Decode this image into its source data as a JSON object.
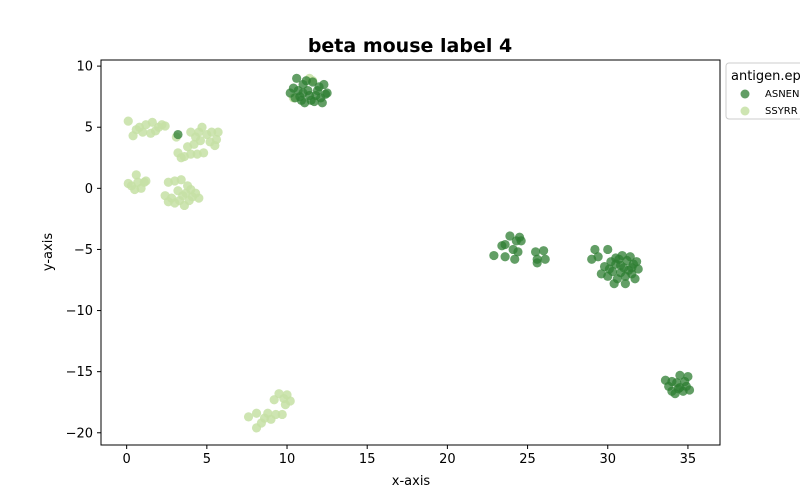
{
  "chart_data": {
    "type": "scatter",
    "title": "beta mouse label 4",
    "xlabel": "x-axis",
    "ylabel": "y-axis",
    "xlim": [
      -1.6,
      37.0
    ],
    "ylim": [
      -21.0,
      10.5
    ],
    "xticks": [
      0,
      5,
      10,
      15,
      20,
      25,
      30,
      35
    ],
    "yticks": [
      10,
      5,
      0,
      -5,
      -10,
      -15,
      -20
    ],
    "xtick_labels": [
      "0",
      "5",
      "10",
      "15",
      "20",
      "25",
      "30",
      "35"
    ],
    "ytick_labels": [
      "10",
      "5",
      "0",
      "−5",
      "−10",
      "−15",
      "−20"
    ],
    "grid": false,
    "legend": {
      "title": "antigen.ep",
      "placement": "outside-top-right",
      "entries": [
        "ASNEN",
        "SSYRR"
      ]
    },
    "series": [
      {
        "name": "ASNEN",
        "color": "#2e7d32",
        "points": [
          [
            3.2,
            4.4
          ],
          [
            10.2,
            7.8
          ],
          [
            10.4,
            8.2
          ],
          [
            10.6,
            9.0
          ],
          [
            10.8,
            7.5
          ],
          [
            11.0,
            8.5
          ],
          [
            11.1,
            7.0
          ],
          [
            11.3,
            8.0
          ],
          [
            11.5,
            7.2
          ],
          [
            11.6,
            8.7
          ],
          [
            11.8,
            7.6
          ],
          [
            12.0,
            8.3
          ],
          [
            12.2,
            7.0
          ],
          [
            12.3,
            8.5
          ],
          [
            12.5,
            7.8
          ],
          [
            10.9,
            7.2
          ],
          [
            11.4,
            7.6
          ],
          [
            11.9,
            8.0
          ],
          [
            12.1,
            7.4
          ],
          [
            10.5,
            7.4
          ],
          [
            11.2,
            8.8
          ],
          [
            11.7,
            7.1
          ],
          [
            12.4,
            7.7
          ],
          [
            10.7,
            8.0
          ],
          [
            11.0,
            7.8
          ],
          [
            22.9,
            -5.5
          ],
          [
            23.4,
            -4.7
          ],
          [
            23.6,
            -4.6
          ],
          [
            23.6,
            -5.6
          ],
          [
            23.9,
            -3.9
          ],
          [
            24.1,
            -5.0
          ],
          [
            24.2,
            -5.8
          ],
          [
            24.3,
            -4.3
          ],
          [
            24.4,
            -5.2
          ],
          [
            24.5,
            -4.0
          ],
          [
            24.6,
            -4.3
          ],
          [
            25.5,
            -5.2
          ],
          [
            25.6,
            -5.8
          ],
          [
            25.6,
            -6.1
          ],
          [
            26.0,
            -5.1
          ],
          [
            26.1,
            -5.8
          ],
          [
            29.0,
            -5.8
          ],
          [
            29.2,
            -5.0
          ],
          [
            29.4,
            -5.6
          ],
          [
            29.6,
            -7.0
          ],
          [
            29.8,
            -6.4
          ],
          [
            30.0,
            -5.0
          ],
          [
            30.0,
            -7.2
          ],
          [
            30.2,
            -6.0
          ],
          [
            30.3,
            -6.8
          ],
          [
            30.4,
            -7.8
          ],
          [
            30.5,
            -6.2
          ],
          [
            30.6,
            -7.4
          ],
          [
            30.7,
            -5.8
          ],
          [
            30.8,
            -6.9
          ],
          [
            30.9,
            -5.5
          ],
          [
            31.0,
            -6.5
          ],
          [
            31.1,
            -7.2
          ],
          [
            31.2,
            -5.9
          ],
          [
            31.3,
            -6.7
          ],
          [
            31.4,
            -5.6
          ],
          [
            31.5,
            -7.0
          ],
          [
            31.6,
            -6.2
          ],
          [
            31.7,
            -7.4
          ],
          [
            31.8,
            -6.0
          ],
          [
            31.9,
            -6.6
          ],
          [
            30.1,
            -6.6
          ],
          [
            30.5,
            -5.7
          ],
          [
            31.1,
            -7.8
          ],
          [
            30.8,
            -6.3
          ],
          [
            31.5,
            -6.5
          ],
          [
            33.6,
            -15.7
          ],
          [
            33.8,
            -16.2
          ],
          [
            34.0,
            -15.8
          ],
          [
            34.0,
            -16.6
          ],
          [
            34.2,
            -16.8
          ],
          [
            34.3,
            -15.9
          ],
          [
            34.5,
            -16.3
          ],
          [
            34.5,
            -15.3
          ],
          [
            34.7,
            -16.6
          ],
          [
            34.8,
            -15.8
          ],
          [
            34.9,
            -16.2
          ],
          [
            35.0,
            -15.4
          ],
          [
            35.1,
            -16.5
          ],
          [
            34.4,
            -16.4
          ]
        ]
      },
      {
        "name": "SSYRR",
        "color": "#c5e0a5",
        "points": [
          [
            0.1,
            5.5
          ],
          [
            0.4,
            4.3
          ],
          [
            0.6,
            4.8
          ],
          [
            0.8,
            5.0
          ],
          [
            1.0,
            4.6
          ],
          [
            1.2,
            5.2
          ],
          [
            1.5,
            4.5
          ],
          [
            1.6,
            5.4
          ],
          [
            1.8,
            4.7
          ],
          [
            2.0,
            5.0
          ],
          [
            2.2,
            5.2
          ],
          [
            2.4,
            5.1
          ],
          [
            3.1,
            4.2
          ],
          [
            3.2,
            2.9
          ],
          [
            3.4,
            2.5
          ],
          [
            3.6,
            2.6
          ],
          [
            3.8,
            3.4
          ],
          [
            4.0,
            2.8
          ],
          [
            4.0,
            4.6
          ],
          [
            4.2,
            3.6
          ],
          [
            4.3,
            4.2
          ],
          [
            4.4,
            2.8
          ],
          [
            4.5,
            4.6
          ],
          [
            4.6,
            3.9
          ],
          [
            4.7,
            5.0
          ],
          [
            4.8,
            2.9
          ],
          [
            5.0,
            4.4
          ],
          [
            5.2,
            3.8
          ],
          [
            5.3,
            4.6
          ],
          [
            5.5,
            3.5
          ],
          [
            5.6,
            4.0
          ],
          [
            5.7,
            4.6
          ],
          [
            0.1,
            0.4
          ],
          [
            0.3,
            0.2
          ],
          [
            0.5,
            -0.1
          ],
          [
            0.6,
            1.1
          ],
          [
            0.7,
            0.5
          ],
          [
            0.9,
            0.0
          ],
          [
            1.1,
            0.5
          ],
          [
            1.2,
            0.6
          ],
          [
            2.4,
            -0.6
          ],
          [
            2.6,
            -1.1
          ],
          [
            2.6,
            0.5
          ],
          [
            2.8,
            -0.8
          ],
          [
            3.0,
            -1.2
          ],
          [
            3.0,
            0.6
          ],
          [
            3.2,
            -0.2
          ],
          [
            3.3,
            -1.0
          ],
          [
            3.4,
            0.7
          ],
          [
            3.5,
            -0.6
          ],
          [
            3.6,
            -1.4
          ],
          [
            3.7,
            -0.4
          ],
          [
            3.8,
            0.2
          ],
          [
            3.9,
            -1.0
          ],
          [
            4.0,
            -0.1
          ],
          [
            4.1,
            -0.7
          ],
          [
            4.3,
            -0.4
          ],
          [
            4.5,
            -0.8
          ],
          [
            11.4,
            9.0
          ],
          [
            11.6,
            8.8
          ],
          [
            10.4,
            7.4
          ],
          [
            7.6,
            -18.7
          ],
          [
            8.1,
            -18.4
          ],
          [
            8.1,
            -19.6
          ],
          [
            8.4,
            -19.2
          ],
          [
            8.6,
            -18.8
          ],
          [
            8.8,
            -18.4
          ],
          [
            9.0,
            -18.9
          ],
          [
            9.2,
            -17.3
          ],
          [
            9.3,
            -18.5
          ],
          [
            9.5,
            -16.8
          ],
          [
            9.7,
            -18.5
          ],
          [
            9.8,
            -17.2
          ],
          [
            9.9,
            -17.7
          ],
          [
            10.0,
            -16.9
          ],
          [
            10.2,
            -17.4
          ]
        ]
      }
    ]
  }
}
